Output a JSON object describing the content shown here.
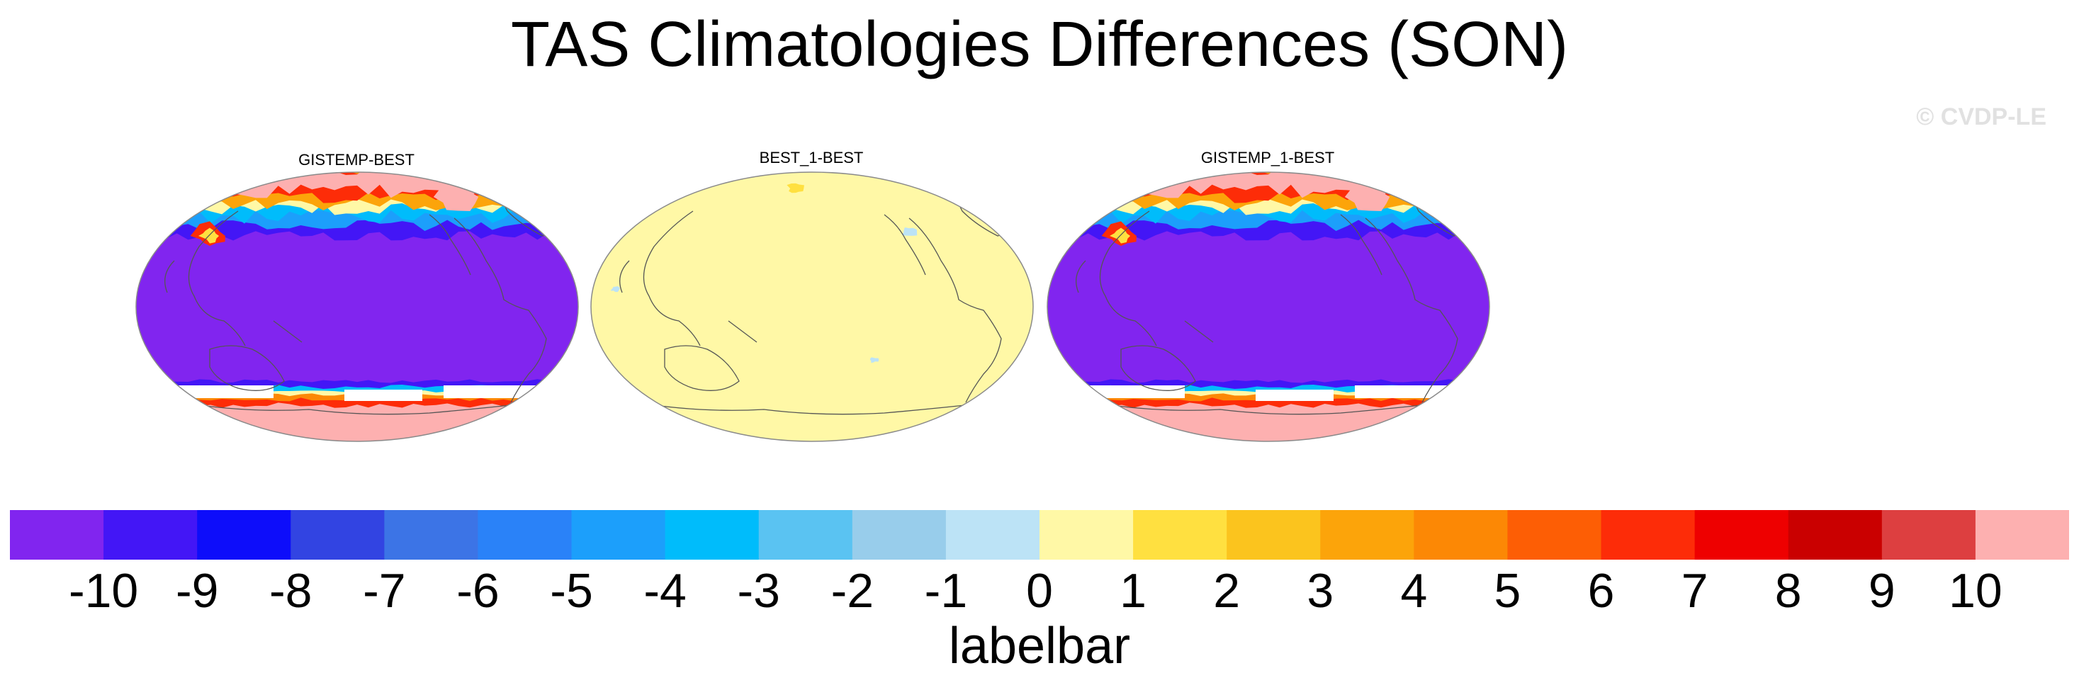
{
  "title": "TAS Climatologies Differences (SON)",
  "watermark": "© CVDP-LE",
  "panels": [
    {
      "id": "p1",
      "title": "GISTEMP-BEST",
      "style": "diff"
    },
    {
      "id": "p2",
      "title": "BEST_1-BEST",
      "style": "zero"
    },
    {
      "id": "p3",
      "title": "GISTEMP_1-BEST",
      "style": "diff"
    }
  ],
  "labelbar": {
    "title": "labelbar",
    "ticks": [
      "-10",
      "-9",
      "-8",
      "-7",
      "-6",
      "-5",
      "-4",
      "-3",
      "-2",
      "-1",
      "0",
      "1",
      "2",
      "3",
      "4",
      "5",
      "6",
      "7",
      "8",
      "9",
      "10"
    ],
    "colors": [
      "#8125ef",
      "#4316f6",
      "#0d0dfa",
      "#3244e2",
      "#3c74e6",
      "#2a82f8",
      "#1c9ffb",
      "#00bcfb",
      "#5ac3f2",
      "#98cdeb",
      "#bce3f6",
      "#fff8a6",
      "#ffe040",
      "#fbc41e",
      "#fca40a",
      "#fc8805",
      "#fd5e05",
      "#fd2c08",
      "#ee0000",
      "#ca0000",
      "#dd3f40",
      "#fdb0b0"
    ]
  },
  "chart_data": {
    "type": "heatmap",
    "title": "TAS Climatologies Differences (SON)",
    "panels": [
      "GISTEMP-BEST",
      "BEST_1-BEST",
      "GISTEMP_1-BEST"
    ],
    "colorbar_levels": [
      -10,
      -9,
      -8,
      -7,
      -6,
      -5,
      -4,
      -3,
      -2,
      -1,
      0,
      1,
      2,
      3,
      4,
      5,
      6,
      7,
      8,
      9,
      10
    ],
    "colorbar_title": "labelbar",
    "projection": "Robinson, centered on Pacific",
    "dominant_value_bins": {
      "GISTEMP-BEST": "< -10 over most of the globe, > 10 over high-latitude land and Antarctica",
      "BEST_1-BEST": "0 to 1 over nearly the whole globe",
      "GISTEMP_1-BEST": "< -10 over most of the globe, > 10 over high-latitude land and Antarctica"
    }
  }
}
